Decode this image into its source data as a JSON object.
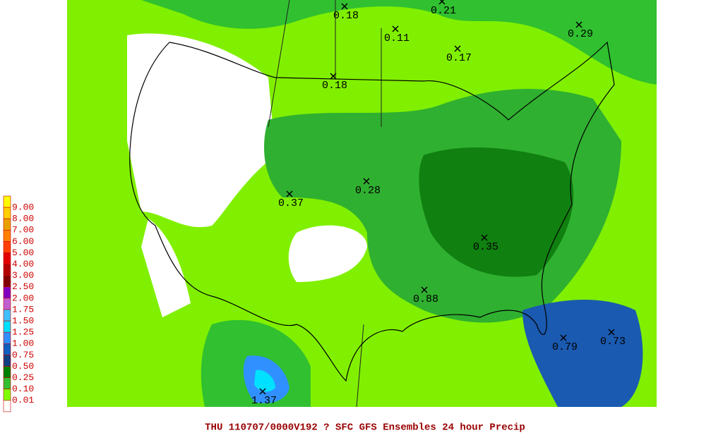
{
  "legend": [
    {
      "label": "9.00",
      "color": "#ffff00"
    },
    {
      "label": "8.00",
      "color": "#ffd000"
    },
    {
      "label": "7.00",
      "color": "#e8a000"
    },
    {
      "label": "6.00",
      "color": "#ff8000"
    },
    {
      "label": "5.00",
      "color": "#ff4000"
    },
    {
      "label": "4.00",
      "color": "#e00000"
    },
    {
      "label": "3.00",
      "color": "#b00000"
    },
    {
      "label": "2.50",
      "color": "#800000"
    },
    {
      "label": "2.00",
      "color": "#8000c0"
    },
    {
      "label": "1.75",
      "color": "#c060d0"
    },
    {
      "label": "1.50",
      "color": "#40c0ff"
    },
    {
      "label": "1.25",
      "color": "#00e0ff"
    },
    {
      "label": "1.00",
      "color": "#3090ff"
    },
    {
      "label": "0.75",
      "color": "#1060c0"
    },
    {
      "label": "0.50",
      "color": "#104080"
    },
    {
      "label": "0.25",
      "color": "#008000"
    },
    {
      "label": "0.10",
      "color": "#30c030"
    },
    {
      "label": "0.01",
      "color": "#80ff00"
    }
  ],
  "station_labels": [
    "0.18",
    "0.21",
    "0.11",
    "0.17",
    "0.29",
    "0.18",
    "0.28",
    "0.37",
    "0.35",
    "0.88",
    "0.79",
    "0.73",
    "1.37"
  ],
  "caption": "THU 110707/0000V192  ? SFC GFS Ensembles 24 hour Precip"
}
